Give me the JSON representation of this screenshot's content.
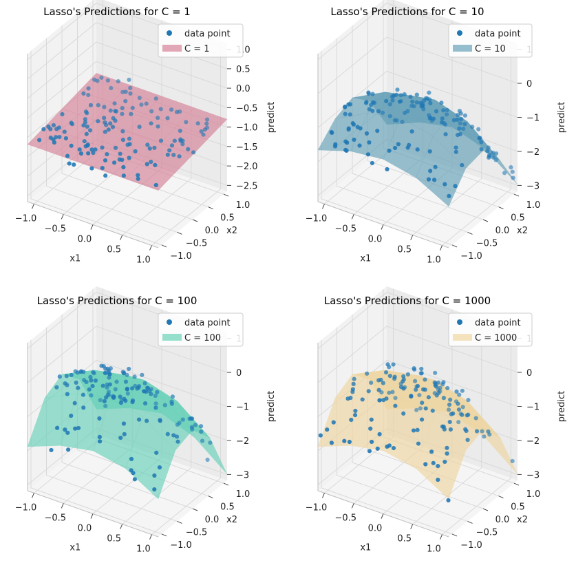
{
  "chart_data": [
    {
      "type": "surface3d",
      "title": "Lasso's Predictions for C = 1",
      "xlabel": "x1",
      "ylabel": "x2",
      "zlabel": "predict",
      "xticks": [
        "−1.0",
        "−0.5",
        "0.0",
        "0.5",
        "1.0"
      ],
      "yticks": [
        "−1.0",
        "−0.5",
        "0.0",
        "0.5",
        "1.0"
      ],
      "zticks": [
        "1.0",
        "0.5",
        "0.0",
        "−0.5",
        "−1.0",
        "−1.5",
        "−2.0",
        "−2.5"
      ],
      "zlim": [
        -2.7,
        1.3
      ],
      "legend": {
        "placement": "top-right",
        "entries": [
          "data point",
          "C = 1"
        ]
      },
      "surface_color": "#d47a91",
      "surface_z": [
        [
          -1.15,
          -1.05,
          -0.95,
          -0.85,
          -0.75
        ],
        [
          -1.15,
          -1.05,
          -0.95,
          -0.85,
          -0.75
        ],
        [
          -1.15,
          -1.05,
          -0.95,
          -0.85,
          -0.75
        ],
        [
          -1.15,
          -1.05,
          -0.95,
          -0.85,
          -0.75
        ],
        [
          -1.15,
          -1.05,
          -0.95,
          -0.85,
          -0.75
        ]
      ],
      "series": [
        {
          "name": "data point"
        },
        {
          "name": "C = 1"
        }
      ]
    },
    {
      "type": "surface3d",
      "title": "Lasso's Predictions for C = 10",
      "xlabel": "x1",
      "ylabel": "x2",
      "zlabel": "predict",
      "xticks": [
        "−1.0",
        "−0.5",
        "0.0",
        "0.5",
        "1.0"
      ],
      "yticks": [
        "−1.0",
        "−0.5",
        "0.0",
        "0.5",
        "1.0"
      ],
      "zticks": [
        "1",
        "0",
        "−1",
        "−2",
        "−3"
      ],
      "zlim": [
        -3.1,
        1.2
      ],
      "legend": {
        "placement": "top-right",
        "entries": [
          "data point",
          "C = 10"
        ]
      },
      "surface_color": "#5c9bb3",
      "surface_z": [
        [
          -1.6,
          -1.1,
          -0.9,
          -1.4,
          -2.5
        ],
        [
          -1.3,
          -0.6,
          -0.4,
          -0.9,
          -2.1
        ],
        [
          -1.2,
          -0.4,
          -0.2,
          -0.7,
          -1.9
        ],
        [
          -1.4,
          -0.6,
          -0.4,
          -1.0,
          -2.2
        ],
        [
          -1.9,
          -1.2,
          -1.1,
          -1.8,
          -2.9
        ]
      ],
      "series": [
        {
          "name": "data point"
        },
        {
          "name": "C = 10"
        }
      ]
    },
    {
      "type": "surface3d",
      "title": "Lasso's Predictions for C = 100",
      "xlabel": "x1",
      "ylabel": "x2",
      "zlabel": "predict",
      "xticks": [
        "−1.0",
        "−0.5",
        "0.0",
        "0.5",
        "1.0"
      ],
      "yticks": [
        "−1.0",
        "−0.5",
        "0.0",
        "0.5",
        "1.0"
      ],
      "zticks": [
        "1",
        "0",
        "−1",
        "−2",
        "−3"
      ],
      "zlim": [
        -3.5,
        1.2
      ],
      "legend": {
        "placement": "top-right",
        "entries": [
          "data point",
          "C = 100"
        ]
      },
      "surface_color": "#5fcfb4",
      "surface_z": [
        [
          -2.1,
          -1.0,
          -0.7,
          -1.3,
          -2.7
        ],
        [
          -1.7,
          -0.5,
          -0.2,
          -0.8,
          -2.3
        ],
        [
          -1.5,
          -0.3,
          0.0,
          -0.6,
          -2.1
        ],
        [
          -1.7,
          -0.5,
          -0.3,
          -0.9,
          -2.5
        ],
        [
          -2.3,
          -1.2,
          -1.0,
          -1.7,
          -3.3
        ]
      ],
      "series": [
        {
          "name": "data point"
        },
        {
          "name": "C = 100"
        }
      ]
    },
    {
      "type": "surface3d",
      "title": "Lasso's Predictions for C = 1000",
      "xlabel": "x1",
      "ylabel": "x2",
      "zlabel": "predict",
      "xticks": [
        "−1.0",
        "−0.5",
        "0.0",
        "0.5",
        "1.0"
      ],
      "yticks": [
        "−1.0",
        "−0.5",
        "0.0",
        "0.5",
        "1.0"
      ],
      "zticks": [
        "1",
        "0",
        "−1",
        "−2",
        "−3"
      ],
      "zlim": [
        -3.5,
        1.2
      ],
      "legend": {
        "placement": "top-right",
        "entries": [
          "data point",
          "C = 1000"
        ]
      },
      "surface_color": "#efd49b",
      "surface_z": [
        [
          -2.1,
          -1.0,
          -0.7,
          -1.3,
          -2.7
        ],
        [
          -1.7,
          -0.5,
          -0.2,
          -0.8,
          -2.3
        ],
        [
          -1.5,
          -0.3,
          0.0,
          -0.6,
          -2.1
        ],
        [
          -1.7,
          -0.5,
          -0.3,
          -0.9,
          -2.5
        ],
        [
          -2.3,
          -1.2,
          -1.0,
          -1.7,
          -3.3
        ]
      ],
      "series": [
        {
          "name": "data point"
        },
        {
          "name": "C = 1000"
        }
      ]
    }
  ],
  "colors": {
    "data_point": "#1f77b4",
    "pane": "#f2f2f2",
    "grid": "#d9d9d9"
  }
}
